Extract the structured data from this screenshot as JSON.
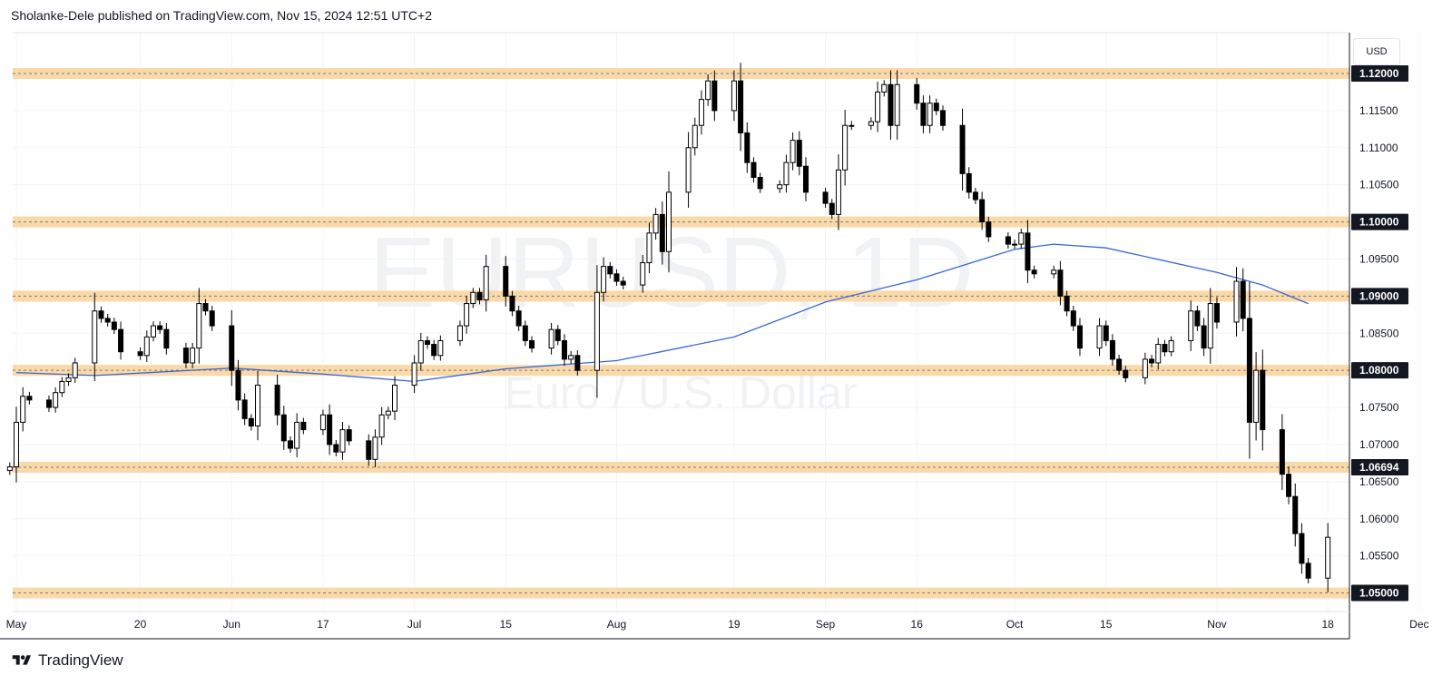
{
  "header": {
    "publisher": "Sholanke-Dele",
    "published_on": "published on TradingView.com,",
    "timestamp": "Nov 15, 2024 12:51 UTC+2"
  },
  "watermark": {
    "symbol": "EURUSD, 1D",
    "description": "Euro / U.S. Dollar"
  },
  "currency": "USD",
  "brand": {
    "name": "TradingView"
  },
  "colors": {
    "zone": "#fad9a8",
    "zone_line": "#787b86",
    "ma": "#3a65d6",
    "candle_up_fill": "#ffffff",
    "candle_down_fill": "#000000",
    "grid": "#f0f3fa"
  },
  "chart_data": {
    "type": "candlestick",
    "interval": "1D",
    "ylim": [
      1.0475,
      1.1255
    ],
    "y_ticks": [
      "1.11500",
      "1.11000",
      "1.10500",
      "1.09500",
      "1.08500",
      "1.07500",
      "1.07000",
      "1.06500",
      "1.06000",
      "1.05500"
    ],
    "x_ticks": [
      {
        "label": "May",
        "date": "2024-05-01"
      },
      {
        "label": "20",
        "date": "2024-05-20"
      },
      {
        "label": "Jun",
        "date": "2024-06-03"
      },
      {
        "label": "17",
        "date": "2024-06-17"
      },
      {
        "label": "Jul",
        "date": "2024-07-01"
      },
      {
        "label": "15",
        "date": "2024-07-15"
      },
      {
        "label": "Aug",
        "date": "2024-08-01"
      },
      {
        "label": "19",
        "date": "2024-08-19"
      },
      {
        "label": "Sep",
        "date": "2024-09-02"
      },
      {
        "label": "16",
        "date": "2024-09-16"
      },
      {
        "label": "Oct",
        "date": "2024-10-01"
      },
      {
        "label": "15",
        "date": "2024-10-15"
      },
      {
        "label": "Nov",
        "date": "2024-11-01"
      },
      {
        "label": "18",
        "date": "2024-11-18"
      },
      {
        "label": "Dec",
        "date": "2024-12-02"
      }
    ],
    "horizontal_levels": [
      {
        "price": 1.12,
        "label": "1.12000"
      },
      {
        "price": 1.1,
        "label": "1.10000"
      },
      {
        "price": 1.09,
        "label": "1.09000"
      },
      {
        "price": 1.08,
        "label": "1.08000"
      },
      {
        "price": 1.06694,
        "label": "1.06694"
      },
      {
        "price": 1.05,
        "label": "1.05000"
      }
    ],
    "closes": [
      1.067,
      1.073,
      1.0765,
      1.076,
      1.075,
      1.077,
      1.0785,
      1.079,
      1.081,
      1.088,
      1.087,
      1.0865,
      1.0855,
      1.0825,
      1.082,
      1.0845,
      1.086,
      1.0855,
      1.083,
      1.081,
      1.083,
      1.089,
      1.088,
      1.086,
      1.08,
      1.076,
      1.0735,
      1.0725,
      1.078,
      1.074,
      1.0705,
      1.0695,
      1.073,
      1.072,
      1.074,
      1.07,
      1.069,
      1.072,
      1.0705,
      1.068,
      1.071,
      1.074,
      1.0745,
      1.078,
      1.081,
      1.084,
      1.0835,
      1.082,
      1.084,
      1.086,
      1.089,
      1.0905,
      1.0895,
      1.094,
      1.09,
      1.088,
      1.086,
      1.084,
      1.083,
      1.0855,
      1.084,
      1.0815,
      1.082,
      1.08,
      1.0905,
      1.094,
      1.093,
      1.092,
      1.0915,
      1.0945,
      1.0985,
      1.101,
      1.096,
      1.104,
      1.11,
      1.113,
      1.1165,
      1.119,
      1.115,
      1.119,
      1.112,
      1.108,
      1.106,
      1.1045,
      1.105,
      1.108,
      1.111,
      1.1075,
      1.104,
      1.1025,
      1.101,
      1.107,
      1.113,
      1.113,
      1.1135,
      1.1175,
      1.1185,
      1.113,
      1.1185,
      1.116,
      1.113,
      1.116,
      1.115,
      1.113,
      1.1065,
      1.104,
      1.103,
      1.1,
      1.098,
      1.097,
      1.097,
      1.0985,
      1.0935,
      1.093,
      1.0935,
      1.09,
      1.088,
      1.086,
      1.083,
      1.086,
      1.084,
      1.0815,
      1.08,
      1.079,
      1.0815,
      1.081,
      1.0835,
      1.0825,
      1.084,
      1.088,
      1.086,
      1.083,
      1.089,
      1.0865,
      1.092,
      1.087,
      1.073,
      1.08,
      1.072,
      1.066,
      1.063,
      1.058,
      1.054,
      1.052,
      1.0575
    ],
    "moving_average": [
      {
        "date": "2024-05-01",
        "value": 1.0797
      },
      {
        "date": "2024-05-13",
        "value": 1.0793
      },
      {
        "date": "2024-06-03",
        "value": 1.0803
      },
      {
        "date": "2024-06-17",
        "value": 1.0795
      },
      {
        "date": "2024-07-01",
        "value": 1.0785
      },
      {
        "date": "2024-07-15",
        "value": 1.0802
      },
      {
        "date": "2024-08-01",
        "value": 1.0813
      },
      {
        "date": "2024-08-19",
        "value": 1.0845
      },
      {
        "date": "2024-09-02",
        "value": 1.0892
      },
      {
        "date": "2024-09-16",
        "value": 1.0922
      },
      {
        "date": "2024-10-01",
        "value": 1.0963
      },
      {
        "date": "2024-10-07",
        "value": 1.097
      },
      {
        "date": "2024-10-15",
        "value": 1.0965
      },
      {
        "date": "2024-11-01",
        "value": 1.0932
      },
      {
        "date": "2024-11-08",
        "value": 1.0915
      },
      {
        "date": "2024-11-15",
        "value": 1.089
      }
    ]
  }
}
